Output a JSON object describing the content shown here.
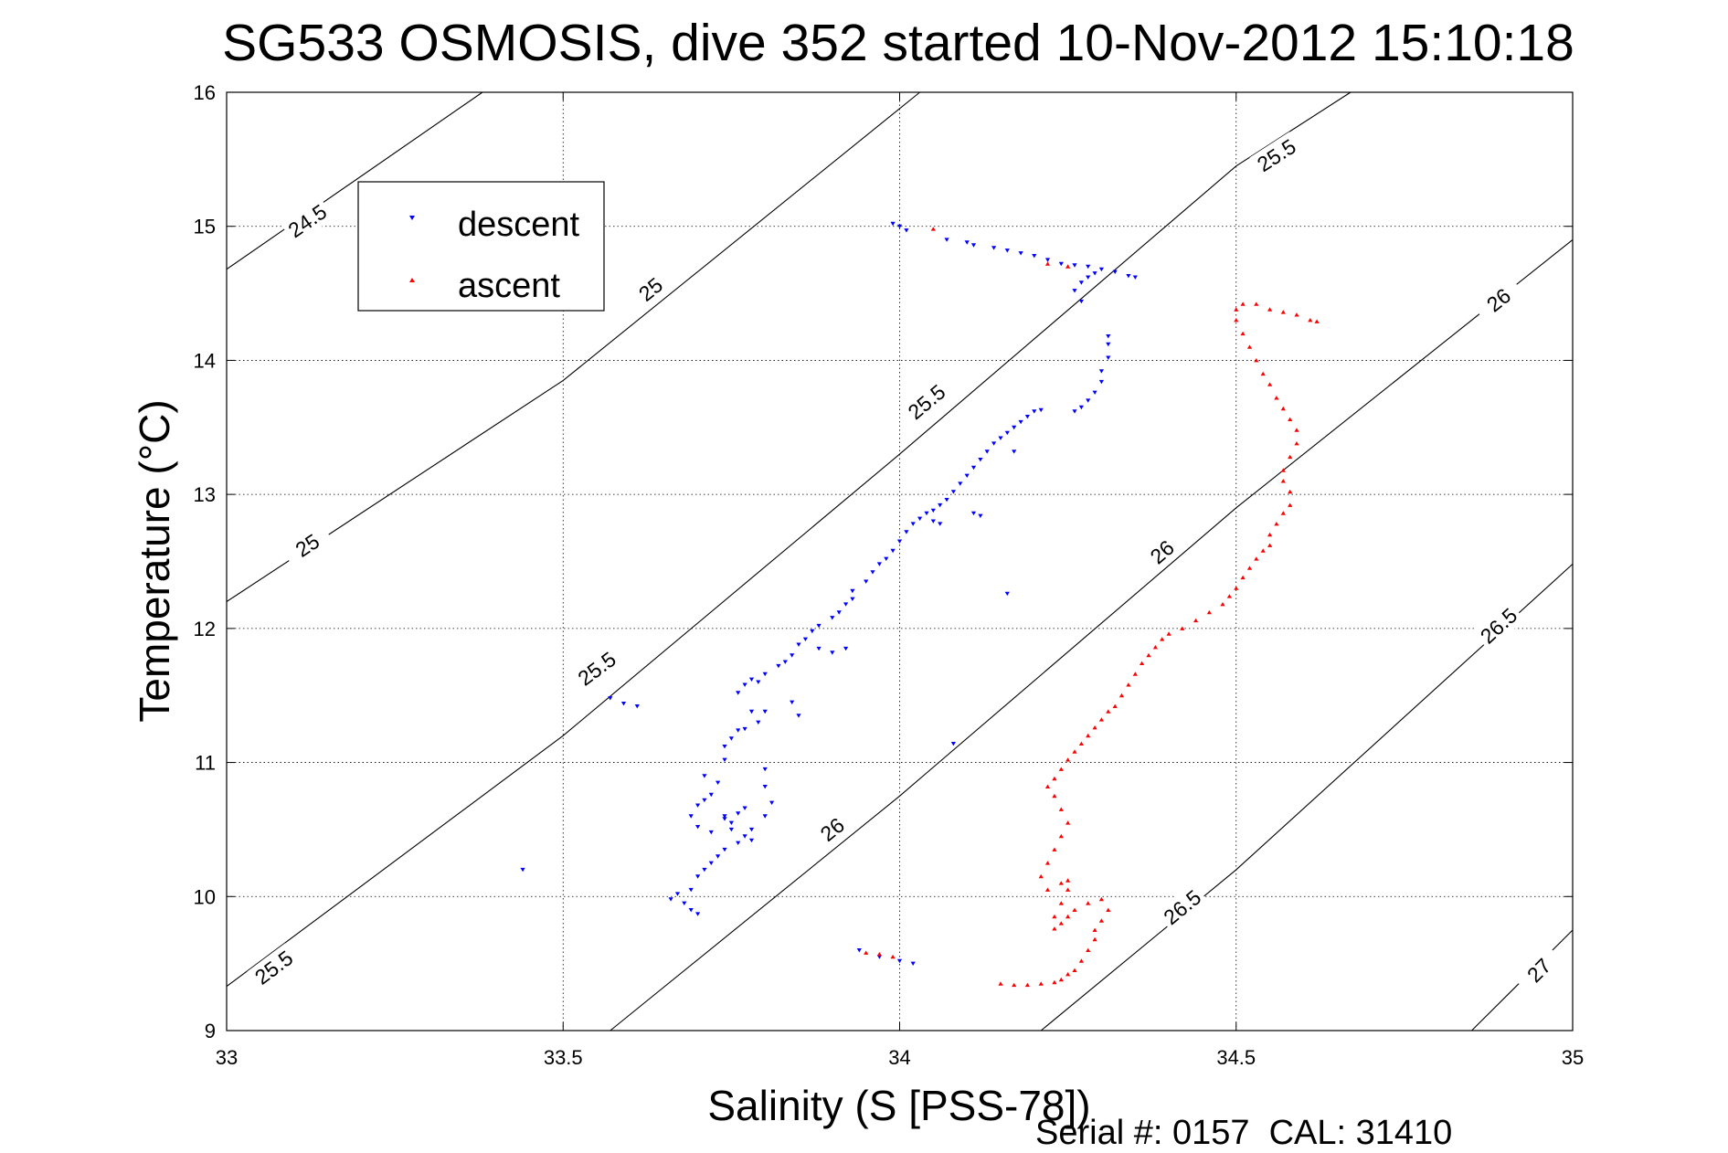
{
  "chart_data": {
    "type": "scatter",
    "title": "SG533 OSMOSIS, dive 352 started 10-Nov-2012 15:10:18",
    "xlabel": "Salinity (S [PSS-78])",
    "ylabel": "Temperature (°C)",
    "xlim": [
      33,
      35
    ],
    "ylim": [
      9,
      16
    ],
    "x_ticks": [
      "33",
      "33.5",
      "34",
      "34.5",
      "35"
    ],
    "y_ticks": [
      "9",
      "10",
      "11",
      "12",
      "13",
      "14",
      "15",
      "16"
    ],
    "grid": true,
    "legend_position": "top-left",
    "footer": "Serial #: 0157  CAL: 31410",
    "density_contours": {
      "line_color": "#000000",
      "levels": [
        {
          "label": "24.5",
          "points": [
            [
              33.0,
              14.68
            ],
            [
              33.38,
              16.0
            ]
          ],
          "labels_at": [
            [
              33.12,
              15.04
            ]
          ]
        },
        {
          "label": "25",
          "points": [
            [
              33.0,
              12.2
            ],
            [
              33.5,
              13.85
            ],
            [
              34.03,
              16.0
            ]
          ],
          "labels_at": [
            [
              33.12,
              12.62
            ],
            [
              33.63,
              14.53
            ]
          ]
        },
        {
          "label": "25.5",
          "points": [
            [
              33.0,
              9.33
            ],
            [
              33.5,
              11.2
            ],
            [
              34.0,
              13.3
            ],
            [
              34.5,
              15.45
            ],
            [
              34.67,
              16.0
            ]
          ],
          "labels_at": [
            [
              33.07,
              9.47
            ],
            [
              33.55,
              11.7
            ],
            [
              34.04,
              13.69
            ],
            [
              34.56,
              15.53
            ]
          ]
        },
        {
          "label": "26",
          "points": [
            [
              33.57,
              9.0
            ],
            [
              34.0,
              10.75
            ],
            [
              34.5,
              12.9
            ],
            [
              35.0,
              14.9
            ]
          ],
          "labels_at": [
            [
              33.9,
              10.5
            ],
            [
              34.39,
              12.57
            ],
            [
              34.89,
              14.45
            ]
          ]
        },
        {
          "label": "26.5",
          "points": [
            [
              34.21,
              9.0
            ],
            [
              34.5,
              10.2
            ],
            [
              35.0,
              12.48
            ]
          ],
          "labels_at": [
            [
              34.42,
              9.92
            ],
            [
              34.89,
              12.02
            ]
          ]
        },
        {
          "label": "27",
          "points": [
            [
              34.85,
              9.0
            ],
            [
              35.0,
              9.75
            ]
          ],
          "labels_at": [
            [
              34.95,
              9.45
            ]
          ]
        }
      ]
    },
    "series": [
      {
        "name": "descent",
        "color": "#0000ff",
        "marker": "triangle-down",
        "points": [
          [
            33.44,
            10.2
          ],
          [
            33.57,
            11.48
          ],
          [
            33.59,
            11.44
          ],
          [
            33.61,
            11.42
          ],
          [
            33.94,
            9.6
          ],
          [
            33.97,
            9.55
          ],
          [
            34.0,
            9.52
          ],
          [
            34.02,
            9.5
          ],
          [
            34.08,
            11.14
          ],
          [
            34.16,
            12.26
          ],
          [
            33.66,
            9.98
          ],
          [
            33.67,
            10.02
          ],
          [
            33.68,
            9.95
          ],
          [
            33.69,
            9.9
          ],
          [
            33.7,
            9.87
          ],
          [
            33.69,
            10.05
          ],
          [
            33.7,
            10.15
          ],
          [
            33.71,
            10.2
          ],
          [
            33.72,
            10.25
          ],
          [
            33.73,
            10.3
          ],
          [
            33.74,
            10.35
          ],
          [
            33.76,
            10.4
          ],
          [
            33.77,
            10.45
          ],
          [
            33.75,
            10.5
          ],
          [
            33.74,
            10.58
          ],
          [
            33.76,
            10.62
          ],
          [
            33.77,
            10.66
          ],
          [
            33.78,
            10.5
          ],
          [
            33.78,
            10.42
          ],
          [
            33.72,
            10.48
          ],
          [
            33.7,
            10.52
          ],
          [
            33.69,
            10.6
          ],
          [
            33.7,
            10.68
          ],
          [
            33.71,
            10.72
          ],
          [
            33.72,
            10.76
          ],
          [
            33.74,
            10.6
          ],
          [
            33.75,
            10.55
          ],
          [
            33.8,
            10.6
          ],
          [
            33.81,
            10.7
          ],
          [
            33.8,
            10.82
          ],
          [
            33.8,
            10.95
          ],
          [
            33.73,
            10.85
          ],
          [
            33.71,
            10.9
          ],
          [
            33.74,
            11.02
          ],
          [
            33.74,
            11.12
          ],
          [
            33.75,
            11.18
          ],
          [
            33.76,
            11.24
          ],
          [
            33.77,
            11.25
          ],
          [
            33.79,
            11.3
          ],
          [
            33.8,
            11.38
          ],
          [
            33.78,
            11.38
          ],
          [
            33.76,
            11.52
          ],
          [
            33.77,
            11.58
          ],
          [
            33.78,
            11.62
          ],
          [
            33.79,
            11.6
          ],
          [
            33.8,
            11.66
          ],
          [
            33.82,
            11.72
          ],
          [
            33.83,
            11.75
          ],
          [
            33.84,
            11.45
          ],
          [
            33.85,
            11.35
          ],
          [
            33.84,
            11.8
          ],
          [
            33.85,
            11.88
          ],
          [
            33.86,
            11.92
          ],
          [
            33.87,
            11.98
          ],
          [
            33.88,
            12.02
          ],
          [
            33.9,
            12.08
          ],
          [
            33.91,
            12.12
          ],
          [
            33.92,
            12.18
          ],
          [
            33.93,
            12.22
          ],
          [
            33.92,
            11.85
          ],
          [
            33.9,
            11.82
          ],
          [
            33.88,
            11.85
          ],
          [
            33.93,
            12.28
          ],
          [
            33.95,
            12.35
          ],
          [
            33.96,
            12.42
          ],
          [
            33.97,
            12.48
          ],
          [
            33.98,
            12.52
          ],
          [
            33.99,
            12.58
          ],
          [
            34.0,
            12.65
          ],
          [
            34.01,
            12.72
          ],
          [
            34.02,
            12.78
          ],
          [
            34.03,
            12.82
          ],
          [
            34.04,
            12.86
          ],
          [
            34.05,
            12.88
          ],
          [
            34.06,
            12.92
          ],
          [
            34.07,
            12.96
          ],
          [
            34.08,
            13.02
          ],
          [
            34.09,
            13.08
          ],
          [
            34.1,
            13.14
          ],
          [
            34.11,
            13.2
          ],
          [
            34.12,
            13.26
          ],
          [
            34.13,
            13.32
          ],
          [
            34.14,
            13.38
          ],
          [
            34.15,
            13.42
          ],
          [
            34.16,
            13.46
          ],
          [
            34.17,
            13.5
          ],
          [
            34.18,
            13.54
          ],
          [
            34.19,
            13.58
          ],
          [
            34.2,
            13.62
          ],
          [
            34.21,
            13.63
          ],
          [
            34.17,
            13.32
          ],
          [
            34.11,
            12.86
          ],
          [
            34.12,
            12.84
          ],
          [
            34.05,
            12.8
          ],
          [
            34.06,
            12.78
          ],
          [
            34.26,
            13.62
          ],
          [
            34.27,
            13.65
          ],
          [
            34.28,
            13.7
          ],
          [
            34.29,
            13.76
          ],
          [
            34.3,
            13.84
          ],
          [
            34.3,
            13.92
          ],
          [
            34.31,
            14.02
          ],
          [
            34.31,
            14.12
          ],
          [
            34.31,
            14.18
          ],
          [
            34.27,
            14.44
          ],
          [
            34.26,
            14.52
          ],
          [
            34.27,
            14.58
          ],
          [
            34.28,
            14.62
          ],
          [
            34.29,
            14.65
          ],
          [
            34.3,
            14.68
          ],
          [
            34.32,
            14.66
          ],
          [
            34.34,
            14.63
          ],
          [
            34.35,
            14.62
          ],
          [
            34.28,
            14.7
          ],
          [
            34.26,
            14.71
          ],
          [
            34.24,
            14.72
          ],
          [
            34.22,
            14.75
          ],
          [
            34.2,
            14.78
          ],
          [
            34.18,
            14.8
          ],
          [
            34.16,
            14.82
          ],
          [
            34.14,
            14.84
          ],
          [
            34.11,
            14.86
          ],
          [
            34.1,
            14.88
          ],
          [
            34.07,
            14.9
          ],
          [
            33.99,
            15.02
          ],
          [
            34.0,
            15.0
          ],
          [
            34.01,
            14.97
          ]
        ]
      },
      {
        "name": "ascent",
        "color": "#ff0000",
        "marker": "triangle-up",
        "points": [
          [
            34.05,
            14.98
          ],
          [
            33.97,
            9.57
          ],
          [
            33.99,
            9.55
          ],
          [
            33.95,
            9.58
          ],
          [
            34.25,
            14.7
          ],
          [
            34.22,
            14.72
          ],
          [
            34.15,
            9.35
          ],
          [
            34.17,
            9.34
          ],
          [
            34.19,
            9.34
          ],
          [
            34.21,
            9.35
          ],
          [
            34.23,
            9.36
          ],
          [
            34.24,
            9.38
          ],
          [
            34.25,
            9.42
          ],
          [
            34.26,
            9.45
          ],
          [
            34.27,
            9.52
          ],
          [
            34.28,
            9.6
          ],
          [
            34.29,
            9.68
          ],
          [
            34.29,
            9.75
          ],
          [
            34.3,
            9.82
          ],
          [
            34.31,
            9.9
          ],
          [
            34.3,
            9.98
          ],
          [
            34.28,
            9.95
          ],
          [
            34.26,
            9.9
          ],
          [
            34.25,
            9.85
          ],
          [
            34.24,
            9.8
          ],
          [
            34.23,
            9.76
          ],
          [
            34.23,
            9.85
          ],
          [
            34.24,
            9.95
          ],
          [
            34.25,
            10.05
          ],
          [
            34.25,
            10.12
          ],
          [
            34.24,
            10.1
          ],
          [
            34.22,
            10.05
          ],
          [
            34.21,
            10.15
          ],
          [
            34.22,
            10.25
          ],
          [
            34.23,
            10.35
          ],
          [
            34.24,
            10.45
          ],
          [
            34.25,
            10.55
          ],
          [
            34.24,
            10.65
          ],
          [
            34.23,
            10.75
          ],
          [
            34.22,
            10.82
          ],
          [
            34.23,
            10.88
          ],
          [
            34.24,
            10.95
          ],
          [
            34.25,
            11.02
          ],
          [
            34.26,
            11.08
          ],
          [
            34.27,
            11.14
          ],
          [
            34.28,
            11.2
          ],
          [
            34.29,
            11.26
          ],
          [
            34.3,
            11.32
          ],
          [
            34.31,
            11.38
          ],
          [
            34.32,
            11.42
          ],
          [
            34.33,
            11.5
          ],
          [
            34.34,
            11.58
          ],
          [
            34.35,
            11.66
          ],
          [
            34.36,
            11.74
          ],
          [
            34.37,
            11.8
          ],
          [
            34.38,
            11.86
          ],
          [
            34.39,
            11.92
          ],
          [
            34.4,
            11.96
          ],
          [
            34.42,
            12.0
          ],
          [
            34.44,
            12.06
          ],
          [
            34.46,
            12.12
          ],
          [
            34.48,
            12.18
          ],
          [
            34.49,
            12.24
          ],
          [
            34.5,
            12.3
          ],
          [
            34.51,
            12.38
          ],
          [
            34.52,
            12.45
          ],
          [
            34.53,
            12.52
          ],
          [
            34.54,
            12.58
          ],
          [
            34.55,
            12.62
          ],
          [
            34.55,
            12.7
          ],
          [
            34.56,
            12.78
          ],
          [
            34.57,
            12.86
          ],
          [
            34.58,
            12.92
          ],
          [
            34.58,
            13.02
          ],
          [
            34.57,
            13.1
          ],
          [
            34.57,
            13.18
          ],
          [
            34.58,
            13.28
          ],
          [
            34.59,
            13.38
          ],
          [
            34.59,
            13.48
          ],
          [
            34.58,
            13.56
          ],
          [
            34.57,
            13.64
          ],
          [
            34.56,
            13.72
          ],
          [
            34.55,
            13.82
          ],
          [
            34.54,
            13.9
          ],
          [
            34.53,
            14.0
          ],
          [
            34.52,
            14.1
          ],
          [
            34.51,
            14.2
          ],
          [
            34.5,
            14.3
          ],
          [
            34.5,
            14.38
          ],
          [
            34.51,
            14.42
          ],
          [
            34.53,
            14.42
          ],
          [
            34.55,
            14.38
          ],
          [
            34.57,
            14.36
          ],
          [
            34.59,
            14.34
          ],
          [
            34.61,
            14.3
          ],
          [
            34.62,
            14.29
          ]
        ]
      }
    ]
  }
}
